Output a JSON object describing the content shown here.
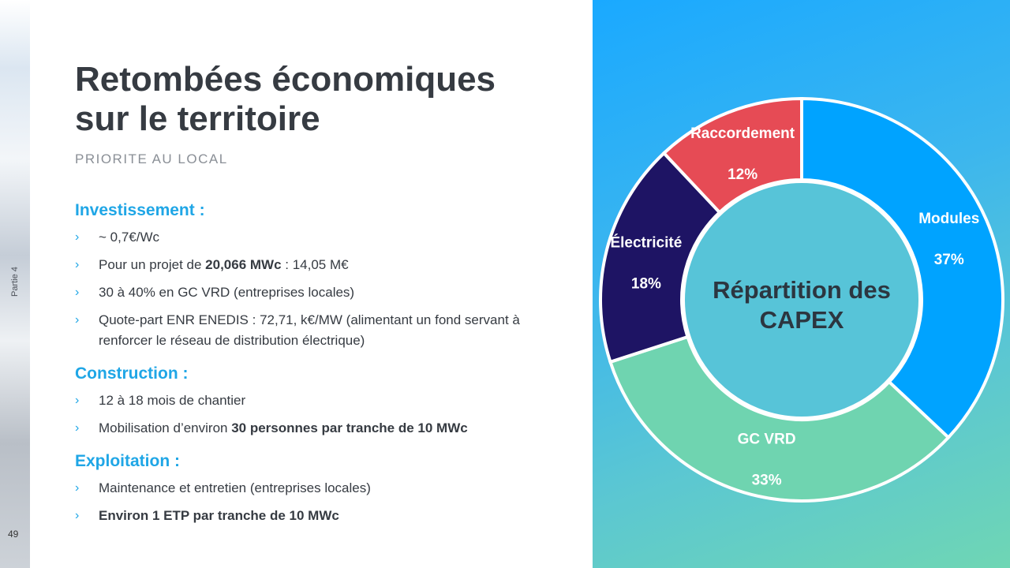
{
  "slide": {
    "title": "Retombées économiques\nsur le territoire",
    "subtitle": "PRIORITE AU LOCAL",
    "section_label": "Partie 4",
    "page_number": "49"
  },
  "sections": [
    {
      "heading": "Investissement :",
      "bullets": [
        [
          {
            "t": "~ 0,7€/Wc"
          }
        ],
        [
          {
            "t": "Pour un projet de "
          },
          {
            "t": "20,066 MWc",
            "b": true
          },
          {
            "t": " : 14,05 M€"
          }
        ],
        [
          {
            "t": "30 à 40% en GC VRD (entreprises locales)"
          }
        ],
        [
          {
            "t": "Quote-part ENR ENEDIS : 72,71, k€/MW (alimentant un fond servant à renforcer le réseau de distribution électrique)"
          }
        ]
      ]
    },
    {
      "heading": "Construction :",
      "bullets": [
        [
          {
            "t": "12 à 18 mois de chantier"
          }
        ],
        [
          {
            "t": "Mobilisation d’environ "
          },
          {
            "t": "30 personnes par tranche de 10 MWc",
            "b": true
          }
        ]
      ]
    },
    {
      "heading": "Exploitation :",
      "bullets": [
        [
          {
            "t": "Maintenance et entretien (entreprises locales)"
          }
        ],
        [
          {
            "t": "Environ 1 ETP par tranche de 10 MWc",
            "b": true
          }
        ]
      ]
    }
  ],
  "chart_data": {
    "type": "pie",
    "donut": true,
    "title": "Répartition des CAPEX",
    "slices": [
      {
        "label": "Modules",
        "value": 37,
        "value_label": "37%",
        "color": "#00a3ff"
      },
      {
        "label": "GC VRD",
        "value": 33,
        "value_label": "33%",
        "color": "#6fd4b0"
      },
      {
        "label": "Électricité",
        "value": 18,
        "value_label": "18%",
        "color": "#1e1464"
      },
      {
        "label": "Raccordement",
        "value": 12,
        "value_label": "12%",
        "color": "#e64b55"
      }
    ],
    "start_angle_deg": 0,
    "legend": "none",
    "center_color": "#57c4d8",
    "separator_color": "#ffffff"
  }
}
